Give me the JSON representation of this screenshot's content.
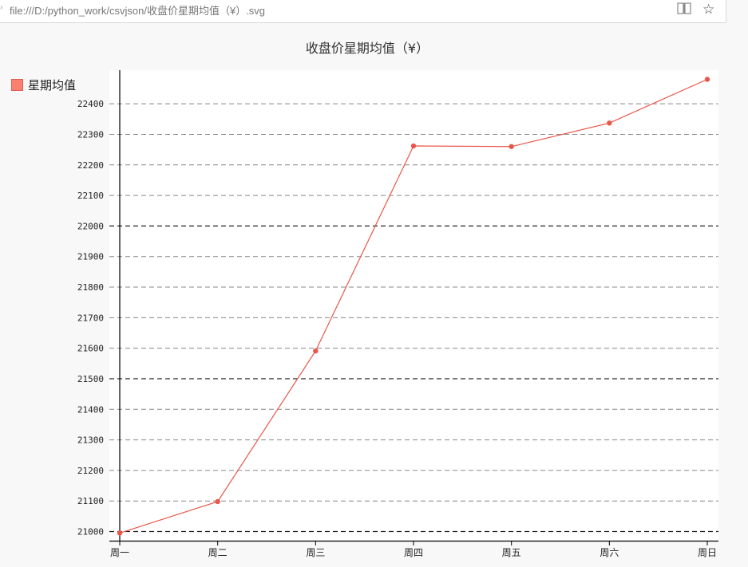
{
  "browser": {
    "url": "file:///D:/python_work/csvjson/收盘价星期均值（¥）.svg",
    "reader_icon": "book-icon",
    "bookmark_icon": "star-icon"
  },
  "chart_data": {
    "type": "line",
    "title": "收盘价星期均值（¥）",
    "categories": [
      "周一",
      "周二",
      "周三",
      "周四",
      "周五",
      "周六",
      "周日"
    ],
    "series": [
      {
        "name": "星期均值",
        "values": [
          20995,
          21098,
          21591,
          22262,
          22260,
          22337,
          22480
        ],
        "color": "#e8574a",
        "legend_color": "#fa8072"
      }
    ],
    "yticks": [
      21000,
      21100,
      21200,
      21300,
      21400,
      21500,
      21600,
      21700,
      21800,
      21900,
      22000,
      22100,
      22200,
      22300,
      22400
    ],
    "major_ticks": [
      21000,
      21500,
      22000
    ],
    "ylim": [
      20970,
      22510
    ],
    "grid": true,
    "legend_position": "top-left",
    "xlabel": "",
    "ylabel": ""
  }
}
